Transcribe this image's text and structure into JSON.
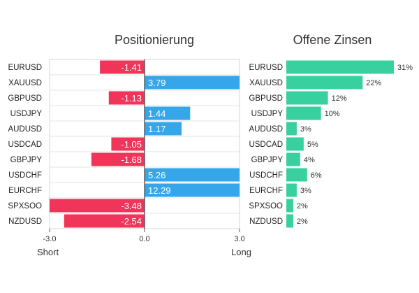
{
  "chart_data": [
    {
      "type": "bar",
      "orientation": "horizontal",
      "title": "Positionierung",
      "categories": [
        "EURUSD",
        "XAUUSD",
        "GBPUSD",
        "USDJPY",
        "AUDUSD",
        "USDCAD",
        "GBPJPY",
        "USDCHF",
        "EURCHF",
        "SPXSOO",
        "NZDUSD"
      ],
      "values": [
        -1.41,
        3.79,
        -1.13,
        1.44,
        1.17,
        -1.05,
        -1.68,
        5.26,
        12.29,
        -3.48,
        -2.54
      ],
      "value_labels": [
        "-1.41",
        "3.79",
        "-1.13",
        "1.44",
        "1.17",
        "-1.05",
        "-1.68",
        "5.26",
        "12.29",
        "-3.48",
        "-2.54"
      ],
      "xlim": [
        -3.0,
        3.0
      ],
      "xticks": [
        "-3.0",
        "0.0",
        "3.0"
      ],
      "xlabel_left": "Short",
      "xlabel_right": "Long",
      "grid": true,
      "colors": {
        "negative": "#f0345a",
        "positive": "#35a6ea"
      }
    },
    {
      "type": "bar",
      "orientation": "horizontal",
      "title": "Offene Zinsen",
      "categories": [
        "EURUSD",
        "XAUUSD",
        "GBPUSD",
        "USDJPY",
        "AUDUSD",
        "USDCAD",
        "GBPJPY",
        "USDCHF",
        "EURCHF",
        "SPXSOO",
        "NZDUSD"
      ],
      "values": [
        31,
        22,
        12,
        10,
        3,
        5,
        4,
        6,
        3,
        2,
        2
      ],
      "value_labels": [
        "31%",
        "22%",
        "12%",
        "10%",
        "3%",
        "5%",
        "4%",
        "6%",
        "3%",
        "2%",
        "2%"
      ],
      "xlim": [
        0,
        31
      ],
      "colors": {
        "bar": "#39d0a0"
      }
    }
  ]
}
